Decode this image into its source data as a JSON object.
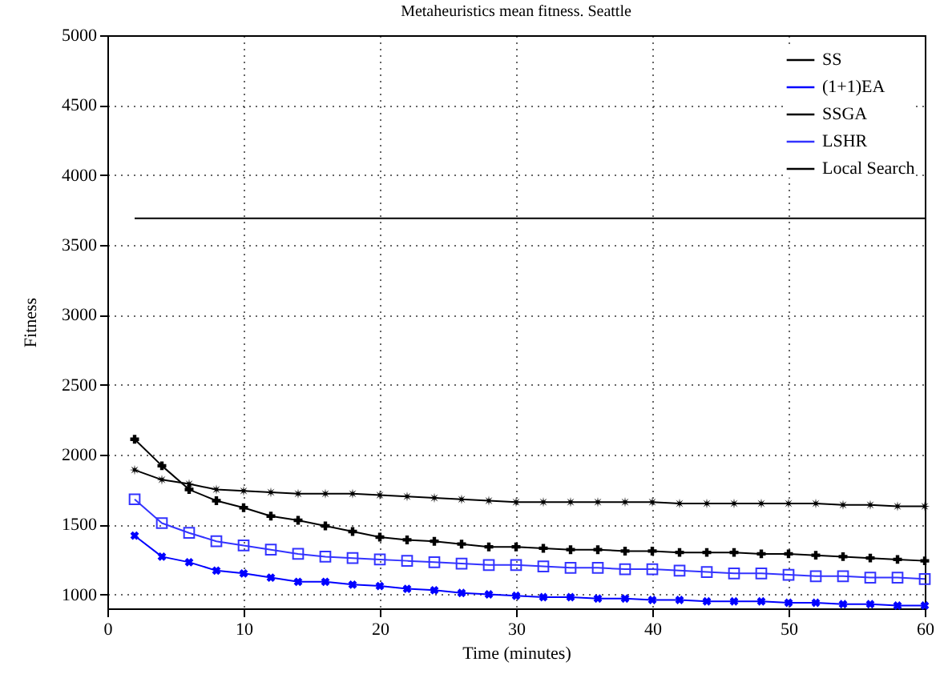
{
  "chart_data": {
    "type": "line",
    "title": "Metaheuristics mean fitness. Seattle",
    "xlabel": "Time (minutes)",
    "ylabel": "Fitness",
    "x": [
      2,
      4,
      6,
      8,
      10,
      12,
      14,
      16,
      18,
      20,
      22,
      24,
      26,
      28,
      30,
      32,
      34,
      36,
      38,
      40,
      42,
      44,
      46,
      48,
      50,
      52,
      54,
      56,
      58,
      60
    ],
    "xlim": [
      0,
      60
    ],
    "xticks": [
      0,
      10,
      20,
      30,
      40,
      50,
      60
    ],
    "ylim": [
      900,
      5000
    ],
    "yticks": [
      1000,
      1500,
      2000,
      2500,
      3000,
      3500,
      4000,
      4500,
      5000
    ],
    "grid": true,
    "legend": "top right",
    "series": [
      {
        "name": "SS",
        "color": "#000000",
        "marker": "cross",
        "values": [
          2110,
          1920,
          1750,
          1670,
          1620,
          1560,
          1530,
          1490,
          1450,
          1410,
          1390,
          1380,
          1360,
          1340,
          1340,
          1330,
          1320,
          1320,
          1310,
          1310,
          1300,
          1300,
          1300,
          1290,
          1290,
          1280,
          1270,
          1260,
          1250,
          1240
        ]
      },
      {
        "name": "(1+1)EA",
        "color": "#0000ff",
        "marker": "x",
        "values": [
          1420,
          1270,
          1230,
          1170,
          1150,
          1120,
          1090,
          1090,
          1070,
          1060,
          1040,
          1030,
          1010,
          1000,
          990,
          980,
          980,
          970,
          970,
          960,
          960,
          950,
          950,
          950,
          940,
          940,
          930,
          930,
          920,
          920
        ]
      },
      {
        "name": "SSGA",
        "color": "#000000",
        "marker": "star",
        "values": [
          1890,
          1820,
          1790,
          1750,
          1740,
          1730,
          1720,
          1720,
          1720,
          1710,
          1700,
          1690,
          1680,
          1670,
          1660,
          1660,
          1660,
          1660,
          1660,
          1660,
          1650,
          1650,
          1650,
          1650,
          1650,
          1650,
          1640,
          1640,
          1630,
          1630
        ]
      },
      {
        "name": "LSHR",
        "color": "#3333ff",
        "marker": "square",
        "values": [
          1680,
          1510,
          1440,
          1380,
          1350,
          1320,
          1290,
          1270,
          1260,
          1250,
          1240,
          1230,
          1220,
          1210,
          1210,
          1200,
          1190,
          1190,
          1180,
          1180,
          1170,
          1160,
          1150,
          1150,
          1140,
          1130,
          1130,
          1120,
          1120,
          1110
        ]
      },
      {
        "name": "Local Search",
        "color": "#000000",
        "marker": "none",
        "x": [
          2,
          60
        ],
        "values": [
          3690,
          3690
        ]
      }
    ]
  }
}
